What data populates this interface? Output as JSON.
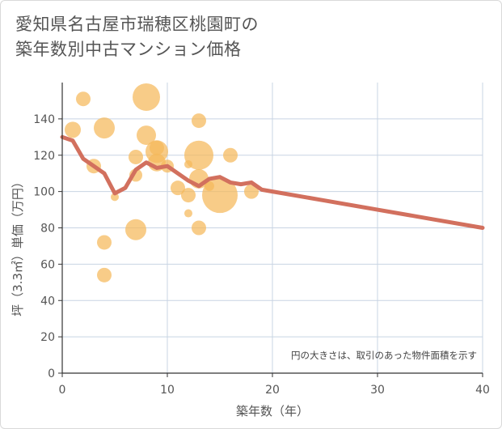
{
  "chart_data": {
    "type": "scatter",
    "title_lines": [
      "愛知県名古屋市瑞穂区桃園町の",
      "築年数別中古マンション価格"
    ],
    "xlabel": "築年数（年）",
    "ylabel": "坪（3.3㎡）単価（万円）",
    "xlim": [
      0,
      40
    ],
    "ylim": [
      0,
      160
    ],
    "x_ticks": [
      0,
      10,
      20,
      30,
      40
    ],
    "y_ticks": [
      0,
      20,
      40,
      60,
      80,
      100,
      120,
      140
    ],
    "grid": true,
    "note": "円の大きさは、取引のあった物件面積を示す",
    "colors": {
      "bubble": "#f5b95a",
      "trend": "#d2705e",
      "grid": "#c8d4e3",
      "axis": "#333333"
    },
    "bubbles": [
      {
        "x": 1,
        "y": 134,
        "size": 10
      },
      {
        "x": 2,
        "y": 151,
        "size": 9
      },
      {
        "x": 3,
        "y": 114,
        "size": 9
      },
      {
        "x": 4,
        "y": 135,
        "size": 13
      },
      {
        "x": 4,
        "y": 72,
        "size": 9
      },
      {
        "x": 4,
        "y": 54,
        "size": 9
      },
      {
        "x": 5,
        "y": 97,
        "size": 5
      },
      {
        "x": 7,
        "y": 119,
        "size": 9
      },
      {
        "x": 7,
        "y": 109,
        "size": 8
      },
      {
        "x": 7,
        "y": 79,
        "size": 13
      },
      {
        "x": 8,
        "y": 152,
        "size": 17
      },
      {
        "x": 8,
        "y": 131,
        "size": 12
      },
      {
        "x": 9,
        "y": 124,
        "size": 9
      },
      {
        "x": 9,
        "y": 122,
        "size": 14
      },
      {
        "x": 9,
        "y": 116,
        "size": 11
      },
      {
        "x": 10,
        "y": 114,
        "size": 8
      },
      {
        "x": 11,
        "y": 102,
        "size": 9
      },
      {
        "x": 12,
        "y": 98,
        "size": 9
      },
      {
        "x": 12,
        "y": 88,
        "size": 5
      },
      {
        "x": 12,
        "y": 115,
        "size": 5
      },
      {
        "x": 13,
        "y": 139,
        "size": 9
      },
      {
        "x": 13,
        "y": 120,
        "size": 18
      },
      {
        "x": 13,
        "y": 107,
        "size": 12
      },
      {
        "x": 13,
        "y": 80,
        "size": 9
      },
      {
        "x": 14,
        "y": 103,
        "size": 6
      },
      {
        "x": 15,
        "y": 98,
        "size": 22
      },
      {
        "x": 16,
        "y": 120,
        "size": 9
      },
      {
        "x": 18,
        "y": 100,
        "size": 9
      }
    ],
    "trend": {
      "x": [
        0,
        1,
        2,
        3,
        4,
        5,
        6,
        7,
        8,
        9,
        10,
        11,
        12,
        13,
        14,
        15,
        16,
        17,
        18,
        19,
        20,
        25,
        30,
        35,
        40
      ],
      "y": [
        130,
        128,
        118,
        114,
        110,
        99,
        102,
        112,
        116,
        113,
        114,
        110,
        106,
        103,
        107,
        108,
        105,
        104,
        105,
        101,
        100,
        95,
        90,
        85,
        80
      ]
    }
  }
}
